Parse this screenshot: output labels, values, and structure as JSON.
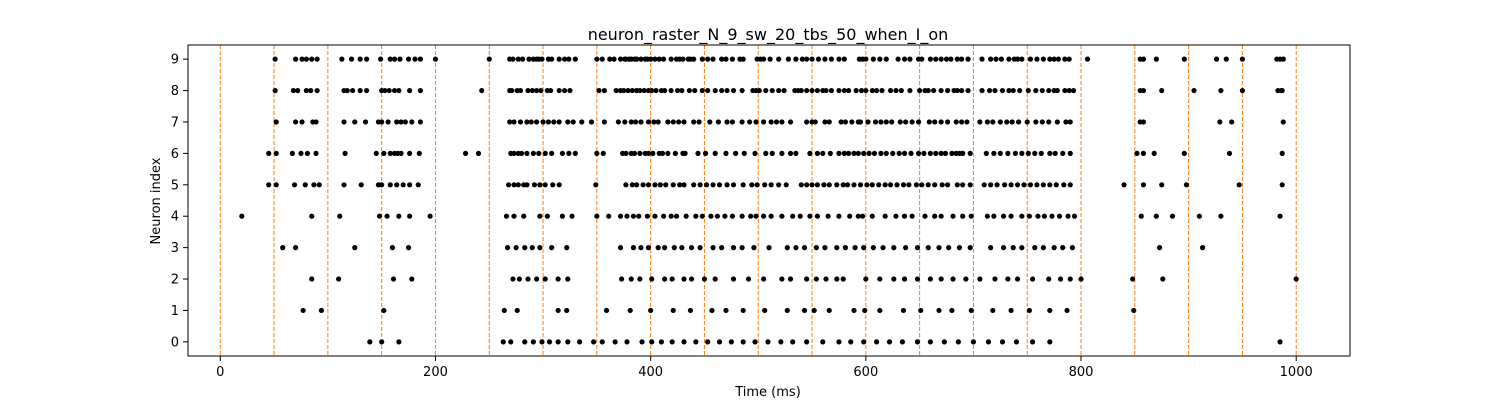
{
  "chart_data": {
    "type": "scatter",
    "title": "neuron_raster_N_9_sw_20_tbs_50_when_I_on",
    "xlabel": "Time (ms)",
    "ylabel": "Neuron index",
    "xlim": [
      -30,
      1050
    ],
    "ylim": [
      -0.45,
      9.45
    ],
    "xticks": [
      0,
      200,
      400,
      600,
      800,
      1000
    ],
    "yticks": [
      0,
      1,
      2,
      3,
      4,
      5,
      6,
      7,
      8,
      9
    ],
    "grid": false,
    "vlines": [
      0,
      50,
      100,
      150,
      200,
      250,
      300,
      350,
      400,
      450,
      500,
      550,
      600,
      650,
      700,
      750,
      800,
      850,
      900,
      950,
      1000
    ],
    "vline_color": "#ff7f0e",
    "point_color": "#000000",
    "series": [
      {
        "neuron": 9,
        "x": [
          51,
          70,
          76,
          80,
          85,
          90,
          113,
          122,
          130,
          136,
          149,
          158,
          162,
          167,
          175,
          181,
          186,
          200,
          250,
          269,
          272,
          277,
          281,
          287,
          291,
          294,
          296,
          299,
          305,
          308,
          315,
          320,
          324,
          330,
          350,
          355,
          362,
          366,
          372,
          376,
          377,
          380,
          382,
          385,
          387,
          391,
          395,
          397,
          400,
          404,
          408,
          412,
          419,
          424,
          427,
          430,
          435,
          437,
          440,
          448,
          453,
          458,
          466,
          470,
          476,
          483,
          486,
          499,
          502,
          505,
          511,
          519,
          528,
          535,
          541,
          545,
          550,
          556,
          562,
          568,
          575,
          580,
          594,
          597,
          600,
          607,
          613,
          619,
          630,
          636,
          641,
          649,
          652,
          660,
          665,
          670,
          675,
          679,
          685,
          689,
          695,
          708,
          716,
          721,
          726,
          733,
          738,
          741,
          745,
          753,
          759,
          765,
          771,
          775,
          779,
          785,
          789,
          806,
          855,
          858,
          870,
          896,
          926,
          935,
          950,
          982,
          985,
          988
        ]
      },
      {
        "neuron": 8,
        "x": [
          51,
          68,
          72,
          80,
          84,
          90,
          115,
          118,
          123,
          130,
          136,
          150,
          153,
          157,
          162,
          166,
          176,
          186,
          243,
          269,
          271,
          276,
          279,
          286,
          290,
          294,
          298,
          304,
          307,
          315,
          320,
          325,
          352,
          357,
          368,
          372,
          375,
          379,
          383,
          387,
          390,
          394,
          398,
          401,
          405,
          410,
          413,
          419,
          425,
          429,
          436,
          441,
          448,
          453,
          460,
          466,
          471,
          477,
          485,
          495,
          498,
          501,
          507,
          513,
          519,
          524,
          534,
          537,
          540,
          545,
          550,
          555,
          560,
          563,
          568,
          575,
          580,
          584,
          591,
          596,
          600,
          606,
          610,
          615,
          623,
          628,
          633,
          641,
          650,
          655,
          658,
          663,
          670,
          676,
          682,
          685,
          689,
          695,
          708,
          715,
          720,
          727,
          733,
          737,
          743,
          751,
          758,
          764,
          770,
          775,
          778,
          785,
          789,
          793,
          855,
          858,
          875,
          905,
          930,
          950,
          983,
          986,
          987
        ]
      },
      {
        "neuron": 7,
        "x": [
          52,
          70,
          76,
          86,
          89,
          115,
          125,
          135,
          147,
          150,
          156,
          164,
          168,
          172,
          178,
          186,
          269,
          273,
          279,
          285,
          289,
          294,
          300,
          305,
          310,
          315,
          323,
          328,
          336,
          345,
          357,
          370,
          376,
          382,
          386,
          391,
          398,
          403,
          407,
          416,
          421,
          426,
          431,
          440,
          445,
          455,
          463,
          471,
          476,
          485,
          492,
          498,
          505,
          512,
          517,
          522,
          530,
          545,
          550,
          553,
          562,
          566,
          577,
          581,
          587,
          593,
          595,
          602,
          609,
          614,
          619,
          624,
          632,
          637,
          643,
          649,
          659,
          664,
          670,
          676,
          684,
          689,
          694,
          706,
          713,
          718,
          725,
          731,
          736,
          742,
          750,
          758,
          764,
          770,
          778,
          786,
          790,
          855,
          858,
          929,
          940,
          988
        ]
      },
      {
        "neuron": 6,
        "x": [
          45,
          52,
          67,
          75,
          81,
          89,
          116,
          145,
          152,
          158,
          162,
          165,
          168,
          176,
          185,
          228,
          240,
          270,
          273,
          277,
          280,
          285,
          291,
          296,
          302,
          308,
          318,
          324,
          330,
          350,
          356,
          374,
          377,
          382,
          385,
          390,
          395,
          398,
          402,
          408,
          411,
          416,
          423,
          430,
          432,
          444,
          451,
          460,
          470,
          479,
          487,
          497,
          507,
          513,
          522,
          530,
          535,
          548,
          555,
          560,
          567,
          575,
          580,
          584,
          589,
          593,
          598,
          603,
          608,
          614,
          619,
          625,
          631,
          636,
          642,
          649,
          654,
          660,
          665,
          670,
          674,
          680,
          684,
          687,
          690,
          697,
          712,
          719,
          725,
          732,
          739,
          745,
          751,
          757,
          763,
          771,
          776,
          783,
          790,
          852,
          858,
          868,
          896,
          938,
          987
        ]
      },
      {
        "neuron": 5,
        "x": [
          45,
          52,
          69,
          79,
          87,
          92,
          115,
          131,
          147,
          150,
          158,
          164,
          170,
          176,
          184,
          268,
          273,
          277,
          282,
          285,
          292,
          297,
          302,
          309,
          315,
          349,
          377,
          383,
          387,
          393,
          398,
          404,
          409,
          414,
          421,
          427,
          431,
          440,
          446,
          452,
          458,
          464,
          471,
          477,
          486,
          494,
          499,
          506,
          512,
          519,
          526,
          540,
          545,
          550,
          555,
          561,
          566,
          573,
          579,
          583,
          589,
          595,
          601,
          606,
          612,
          618,
          623,
          629,
          635,
          640,
          647,
          652,
          658,
          664,
          671,
          676,
          685,
          690,
          697,
          710,
          716,
          722,
          729,
          735,
          741,
          747,
          753,
          759,
          765,
          771,
          777,
          784,
          790,
          840,
          858,
          875,
          898,
          947,
          987
        ]
      },
      {
        "neuron": 4,
        "x": [
          20,
          85,
          111,
          148,
          155,
          166,
          176,
          195,
          266,
          273,
          282,
          297,
          304,
          318,
          327,
          350,
          361,
          372,
          378,
          384,
          389,
          397,
          404,
          412,
          419,
          424,
          433,
          442,
          448,
          456,
          462,
          469,
          476,
          485,
          493,
          498,
          505,
          512,
          522,
          532,
          539,
          548,
          555,
          565,
          575,
          585,
          593,
          597,
          606,
          618,
          628,
          636,
          643,
          655,
          664,
          670,
          681,
          690,
          698,
          713,
          719,
          728,
          735,
          745,
          752,
          760,
          766,
          773,
          780,
          788,
          794,
          856,
          870,
          885,
          910,
          930,
          985
        ]
      },
      {
        "neuron": 3,
        "x": [
          58,
          70,
          125,
          160,
          175,
          267,
          275,
          283,
          290,
          297,
          308,
          322,
          372,
          384,
          391,
          398,
          407,
          413,
          422,
          429,
          438,
          446,
          458,
          466,
          477,
          485,
          496,
          510,
          527,
          535,
          543,
          554,
          562,
          573,
          581,
          590,
          598,
          607,
          616,
          626,
          637,
          648,
          658,
          668,
          677,
          687,
          697,
          716,
          728,
          737,
          745,
          757,
          765,
          775,
          783,
          792,
          873,
          913
        ]
      },
      {
        "neuron": 2,
        "x": [
          85,
          110,
          161,
          178,
          272,
          278,
          286,
          294,
          302,
          314,
          323,
          373,
          382,
          390,
          401,
          413,
          420,
          431,
          438,
          450,
          460,
          477,
          491,
          505,
          522,
          530,
          545,
          554,
          563,
          573,
          579,
          600,
          613,
          626,
          636,
          648,
          660,
          670,
          681,
          693,
          706,
          720,
          732,
          741,
          755,
          770,
          781,
          790,
          800,
          848,
          876,
          1000
        ]
      },
      {
        "neuron": 1,
        "x": [
          77,
          94,
          152,
          264,
          276,
          314,
          322,
          359,
          381,
          400,
          421,
          437,
          457,
          470,
          486,
          506,
          527,
          543,
          552,
          566,
          589,
          599,
          613,
          635,
          651,
          668,
          680,
          698,
          718,
          735,
          752,
          771,
          787,
          849
        ]
      },
      {
        "neuron": 0,
        "x": [
          139,
          150,
          166,
          263,
          270,
          283,
          291,
          299,
          306,
          314,
          323,
          334,
          347,
          355,
          367,
          378,
          392,
          401,
          410,
          420,
          431,
          442,
          453,
          464,
          475,
          486,
          497,
          509,
          521,
          532,
          545,
          560,
          575,
          586,
          598,
          610,
          622,
          634,
          648,
          660,
          673,
          686,
          700,
          714,
          727,
          740,
          755,
          771,
          985
        ]
      }
    ]
  }
}
